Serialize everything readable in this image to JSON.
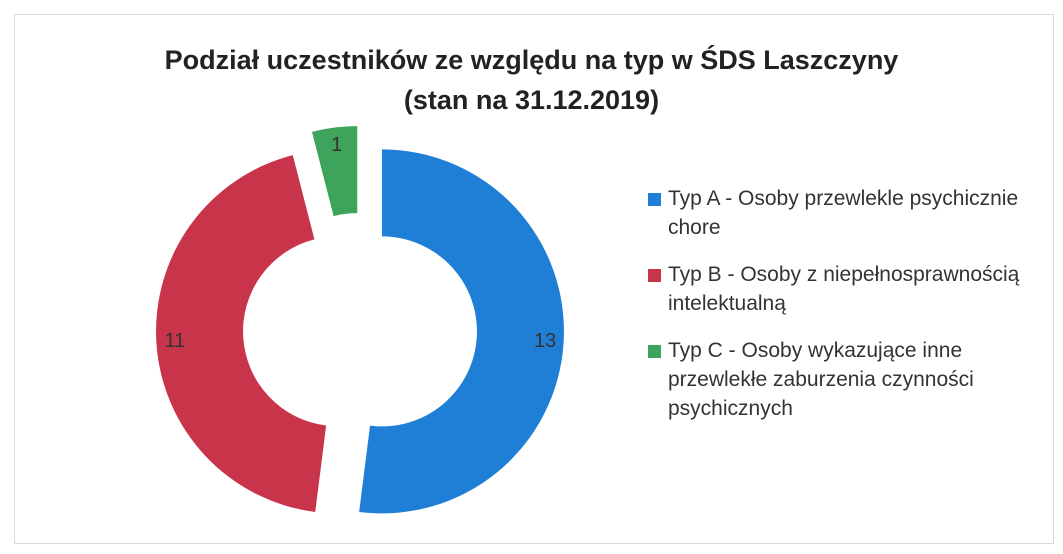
{
  "chart_data": {
    "type": "donut",
    "title": "Podział uczestników ze względu na typ w ŚDS Laszczyny",
    "subtitle": "(stan na 31.12.2019)",
    "categories": [
      "Typ A - Osoby przewlekle psychicznie chore",
      "Typ B - Osoby z niepełnosprawnością intelektualną",
      "Typ C - Osoby wykazujące inne przewlekłe zaburzenia czynności psychicznych"
    ],
    "values": [
      13,
      11,
      1
    ],
    "colors": [
      "#1f7fd6",
      "#c8354b",
      "#3fa45b"
    ],
    "legend": "right"
  }
}
